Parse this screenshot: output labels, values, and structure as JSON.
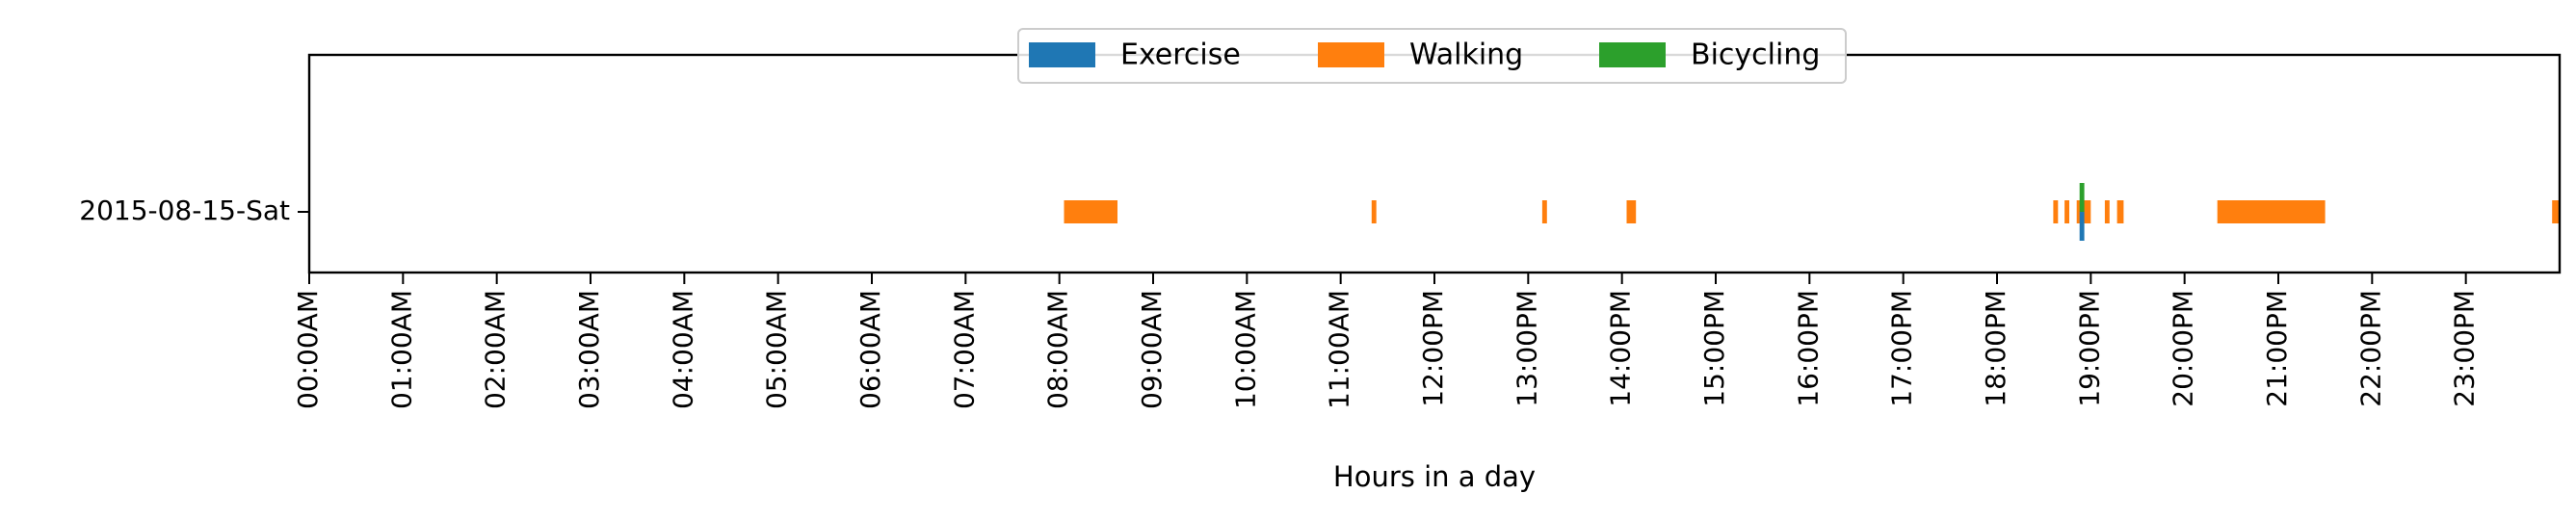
{
  "chart_data": {
    "type": "bar",
    "orientation": "horizontal-timeline",
    "title": "",
    "xlabel": "Hours in a day",
    "ylabel": "",
    "xlim": [
      0,
      24
    ],
    "x_ticks": [
      {
        "value": 0,
        "label": "00:00AM"
      },
      {
        "value": 1,
        "label": "01:00AM"
      },
      {
        "value": 2,
        "label": "02:00AM"
      },
      {
        "value": 3,
        "label": "03:00AM"
      },
      {
        "value": 4,
        "label": "04:00AM"
      },
      {
        "value": 5,
        "label": "05:00AM"
      },
      {
        "value": 6,
        "label": "06:00AM"
      },
      {
        "value": 7,
        "label": "07:00AM"
      },
      {
        "value": 8,
        "label": "08:00AM"
      },
      {
        "value": 9,
        "label": "09:00AM"
      },
      {
        "value": 10,
        "label": "10:00AM"
      },
      {
        "value": 11,
        "label": "11:00AM"
      },
      {
        "value": 12,
        "label": "12:00PM"
      },
      {
        "value": 13,
        "label": "13:00PM"
      },
      {
        "value": 14,
        "label": "14:00PM"
      },
      {
        "value": 15,
        "label": "15:00PM"
      },
      {
        "value": 16,
        "label": "16:00PM"
      },
      {
        "value": 17,
        "label": "17:00PM"
      },
      {
        "value": 18,
        "label": "18:00PM"
      },
      {
        "value": 19,
        "label": "19:00PM"
      },
      {
        "value": 20,
        "label": "20:00PM"
      },
      {
        "value": 21,
        "label": "21:00PM"
      },
      {
        "value": 22,
        "label": "22:00PM"
      },
      {
        "value": 23,
        "label": "23:00PM"
      }
    ],
    "categories": [
      "2015-08-15-Sat"
    ],
    "legend": {
      "placement": "top-center"
    },
    "grid": false,
    "series": [
      {
        "name": "Exercise",
        "color": "#1f77b4",
        "intervals": [
          [
            18.88,
            18.93
          ]
        ]
      },
      {
        "name": "Walking",
        "color": "#ff7f0e",
        "intervals": [
          [
            8.05,
            8.62
          ],
          [
            11.33,
            11.38
          ],
          [
            13.15,
            13.2
          ],
          [
            14.05,
            14.15
          ],
          [
            18.6,
            18.65
          ],
          [
            18.72,
            18.77
          ],
          [
            18.85,
            19.0
          ],
          [
            19.15,
            19.2
          ],
          [
            19.28,
            19.35
          ],
          [
            20.35,
            21.5
          ],
          [
            23.92,
            24.0
          ]
        ]
      },
      {
        "name": "Bicycling",
        "color": "#2ca02c",
        "intervals": [
          [
            18.88,
            18.93
          ]
        ]
      }
    ]
  }
}
